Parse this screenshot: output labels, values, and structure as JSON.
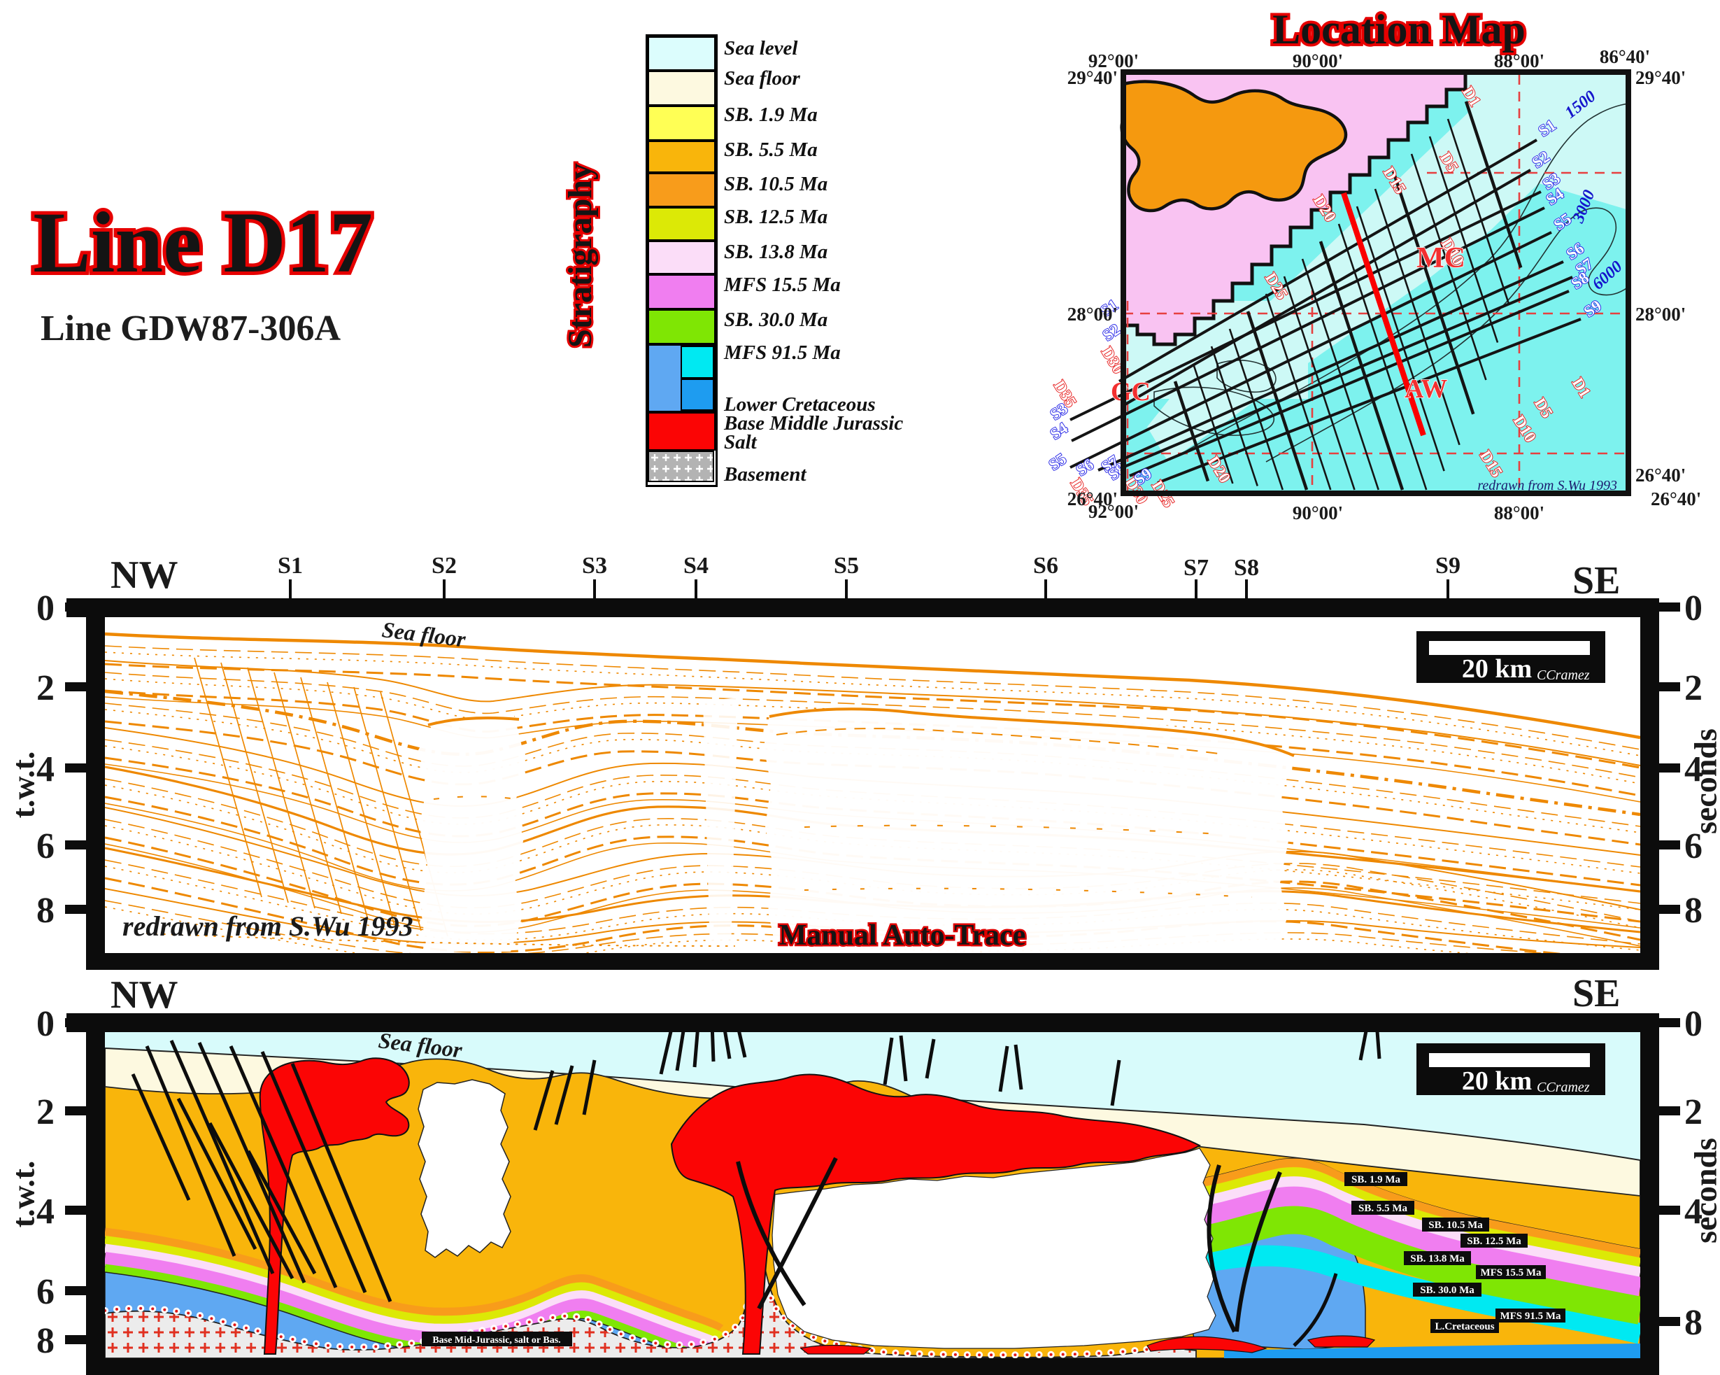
{
  "header": {
    "title": "Line D17",
    "subtitle": "Line GDW87-306A"
  },
  "legend": {
    "heading": "Stratigraphy",
    "labels": [
      "Sea level",
      "Sea floor",
      "SB. 1.9 Ma",
      "SB. 5.5 Ma",
      "SB. 10.5 Ma",
      "SB. 12.5 Ma",
      "SB. 13.8 Ma",
      "MFS 15.5 Ma",
      "SB. 30.0 Ma",
      "MFS 91.5 Ma",
      "Lower Cretaceous",
      "Base Middle Jurassic",
      "Salt",
      "Basement"
    ],
    "colors": {
      "sea_level": "#dcfdfd",
      "sea_floor": "#fdf9e0",
      "sb19": "#ffff55",
      "sb55": "#f9b50b",
      "sb105": "#f89c1b",
      "sb125": "#dce906",
      "sb138": "#fbddf8",
      "mfs155": "#f07ef0",
      "sb300": "#7fe604",
      "lc_left": "#5fa8f2",
      "lc_cyan": "#00e9f2",
      "lc_blue": "#1e9cf0",
      "salt": "#fb0505",
      "basement": "#b3b3b3"
    }
  },
  "map": {
    "title": "Location Map",
    "top_coords": [
      "92°00'",
      "90°00'",
      "88°00'",
      "86°40'"
    ],
    "left_coords": [
      "29°40'",
      "28°00'",
      "26°40'"
    ],
    "right_coords": [
      "29°40'",
      "28°00'",
      "26°40'",
      "26°40'"
    ],
    "bottom_coords": [
      "92°00'",
      "90°00'",
      "88°00'"
    ],
    "dip_labels_nw": [
      "D1",
      "D5",
      "D15",
      "D20",
      "D25",
      "D35",
      "D30"
    ],
    "dip_label_mid": "D10",
    "dip_labels_se": [
      "D15",
      "D10",
      "D5",
      "D1",
      "D20",
      "D25",
      "D30",
      "D35"
    ],
    "strike_labels_ne": [
      "S1",
      "S2",
      "S3",
      "S4",
      "S5",
      "S6",
      "S7",
      "S8",
      "S9"
    ],
    "strike_labels_sw": [
      "S1",
      "S2",
      "S3",
      "S4",
      "S5",
      "S6",
      "S7",
      "S8",
      "S9"
    ],
    "area_labels": [
      "MC",
      "AW",
      "GC"
    ],
    "contour_labels": [
      "1500",
      "3000",
      "6000"
    ],
    "credit": "redrawn from S.Wu 1993"
  },
  "seismic": {
    "nw": "NW",
    "se": "SE",
    "stations": [
      "S1",
      "S2",
      "S3",
      "S4",
      "S5",
      "S6",
      "S7",
      "S8",
      "S9"
    ],
    "ticks": [
      "0",
      "2",
      "4",
      "6",
      "8"
    ],
    "axis_left": "t.w.t.",
    "axis_right": "seconds",
    "sea_floor": "Sea floor",
    "scale_label": "20 km",
    "scale_credit": "CCramez",
    "credit": "redrawn from S.Wu 1993",
    "caption": "Manual Auto-Trace"
  },
  "section": {
    "nw": "NW",
    "se": "SE",
    "ticks": [
      "0",
      "2",
      "4",
      "6",
      "8"
    ],
    "axis_left": "t.w.t.",
    "axis_right": "seconds",
    "sea_floor": "Sea floor",
    "scale_label": "20 km",
    "scale_credit": "CCramez",
    "horizons": [
      "SB. 1.9 Ma",
      "SB. 5.5 Ma",
      "SB. 10.5 Ma",
      "SB. 12.5 Ma",
      "SB. 13.8 Ma",
      "MFS 15.5 Ma",
      "SB. 30.0 Ma",
      "MFS 91.5 Ma",
      "L.Cretaceous"
    ],
    "basement_label": "Base Mid-Jurassic, salt or Bas."
  }
}
